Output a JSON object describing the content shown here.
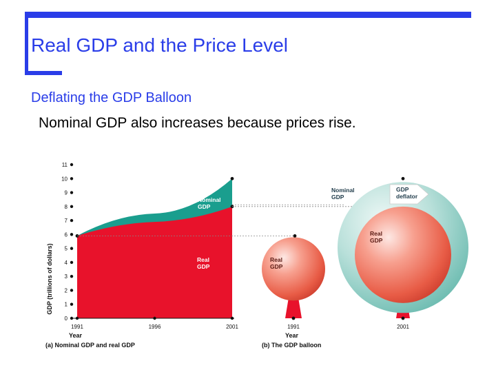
{
  "slide": {
    "title": "Real GDP and the Price Level",
    "subtitle": "Deflating the GDP Balloon",
    "body": "Nominal GDP also increases because prices rise."
  },
  "colors": {
    "accent": "#2a3de8",
    "real_gdp": "#e8122b",
    "nominal_gdp": "#1a9e8e"
  },
  "chart_data": [
    {
      "type": "area",
      "x": [
        1991,
        1996,
        2001
      ],
      "xtick_labels": [
        "1991",
        "1996",
        "2001"
      ],
      "xlabel": "Year",
      "ylabel": "GDP (trillions of dollars)",
      "ylim": [
        0,
        11
      ],
      "yticks": [
        0,
        1,
        2,
        3,
        4,
        5,
        6,
        7,
        8,
        9,
        10,
        11
      ],
      "caption": "(a) Nominal GDP and real GDP",
      "series": [
        {
          "name": "Real GDP",
          "label_lines": [
            "Real",
            "GDP"
          ],
          "values": [
            5.9,
            6.9,
            8.0
          ]
        },
        {
          "name": "Nominal GDP",
          "label_lines": [
            "Nominal",
            "GDP"
          ],
          "values": [
            5.9,
            7.5,
            10.0
          ]
        }
      ]
    },
    {
      "type": "diagram",
      "caption": "(b) The GDP balloon",
      "xlabel": "Year",
      "balloons": [
        {
          "year": "1991",
          "real_gdp": 5.9,
          "label_lines": [
            "Real",
            "GDP"
          ]
        },
        {
          "year": "2001",
          "real_gdp": 8.0,
          "nominal_gdp": 10.0,
          "real_label_lines": [
            "Real",
            "GDP"
          ],
          "nominal_label_lines": [
            "Nominal",
            "GDP"
          ],
          "deflator_label_lines": [
            "GDP",
            "deflator"
          ]
        }
      ]
    }
  ]
}
